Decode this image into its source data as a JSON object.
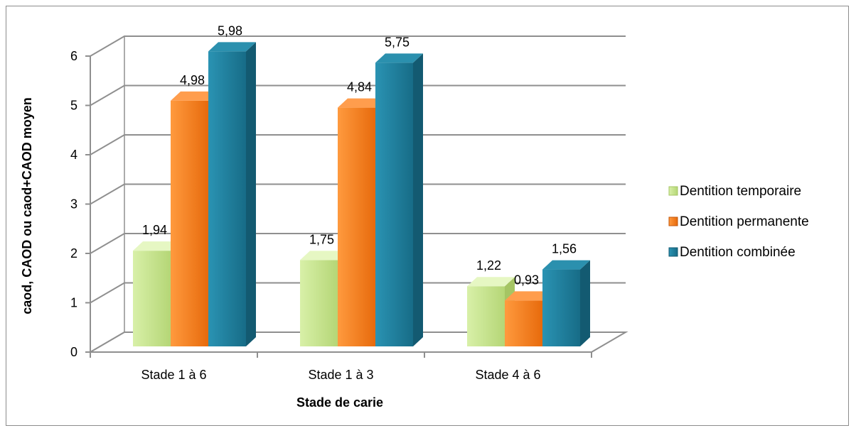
{
  "chart_data": {
    "type": "bar",
    "title": "",
    "xlabel": "Stade de carie",
    "ylabel": "caod, CAOD ou caod+CAOD moyen",
    "categories": [
      "Stade 1 à 6",
      "Stade 1 à 3",
      "Stade 4 à 6"
    ],
    "ylim": [
      0,
      6
    ],
    "yticks": [
      "0",
      "1",
      "2",
      "3",
      "4",
      "5",
      "6"
    ],
    "grid": true,
    "legend_position": "right",
    "series": [
      {
        "name": "Dentition temporaire",
        "values": [
          1.94,
          1.75,
          1.22
        ],
        "labels": [
          "1,94",
          "1,75",
          "1,22"
        ],
        "color": "#c4e38a"
      },
      {
        "name": "Dentition permanente",
        "values": [
          4.98,
          4.84,
          0.93
        ],
        "labels": [
          "4,98",
          "4,84",
          "0,93"
        ],
        "color": "#f47a1e"
      },
      {
        "name": "Dentition combinée",
        "values": [
          5.98,
          5.75,
          1.56
        ],
        "labels": [
          "5,98",
          "5,75",
          "1,56"
        ],
        "color": "#1f7e9c"
      }
    ]
  }
}
